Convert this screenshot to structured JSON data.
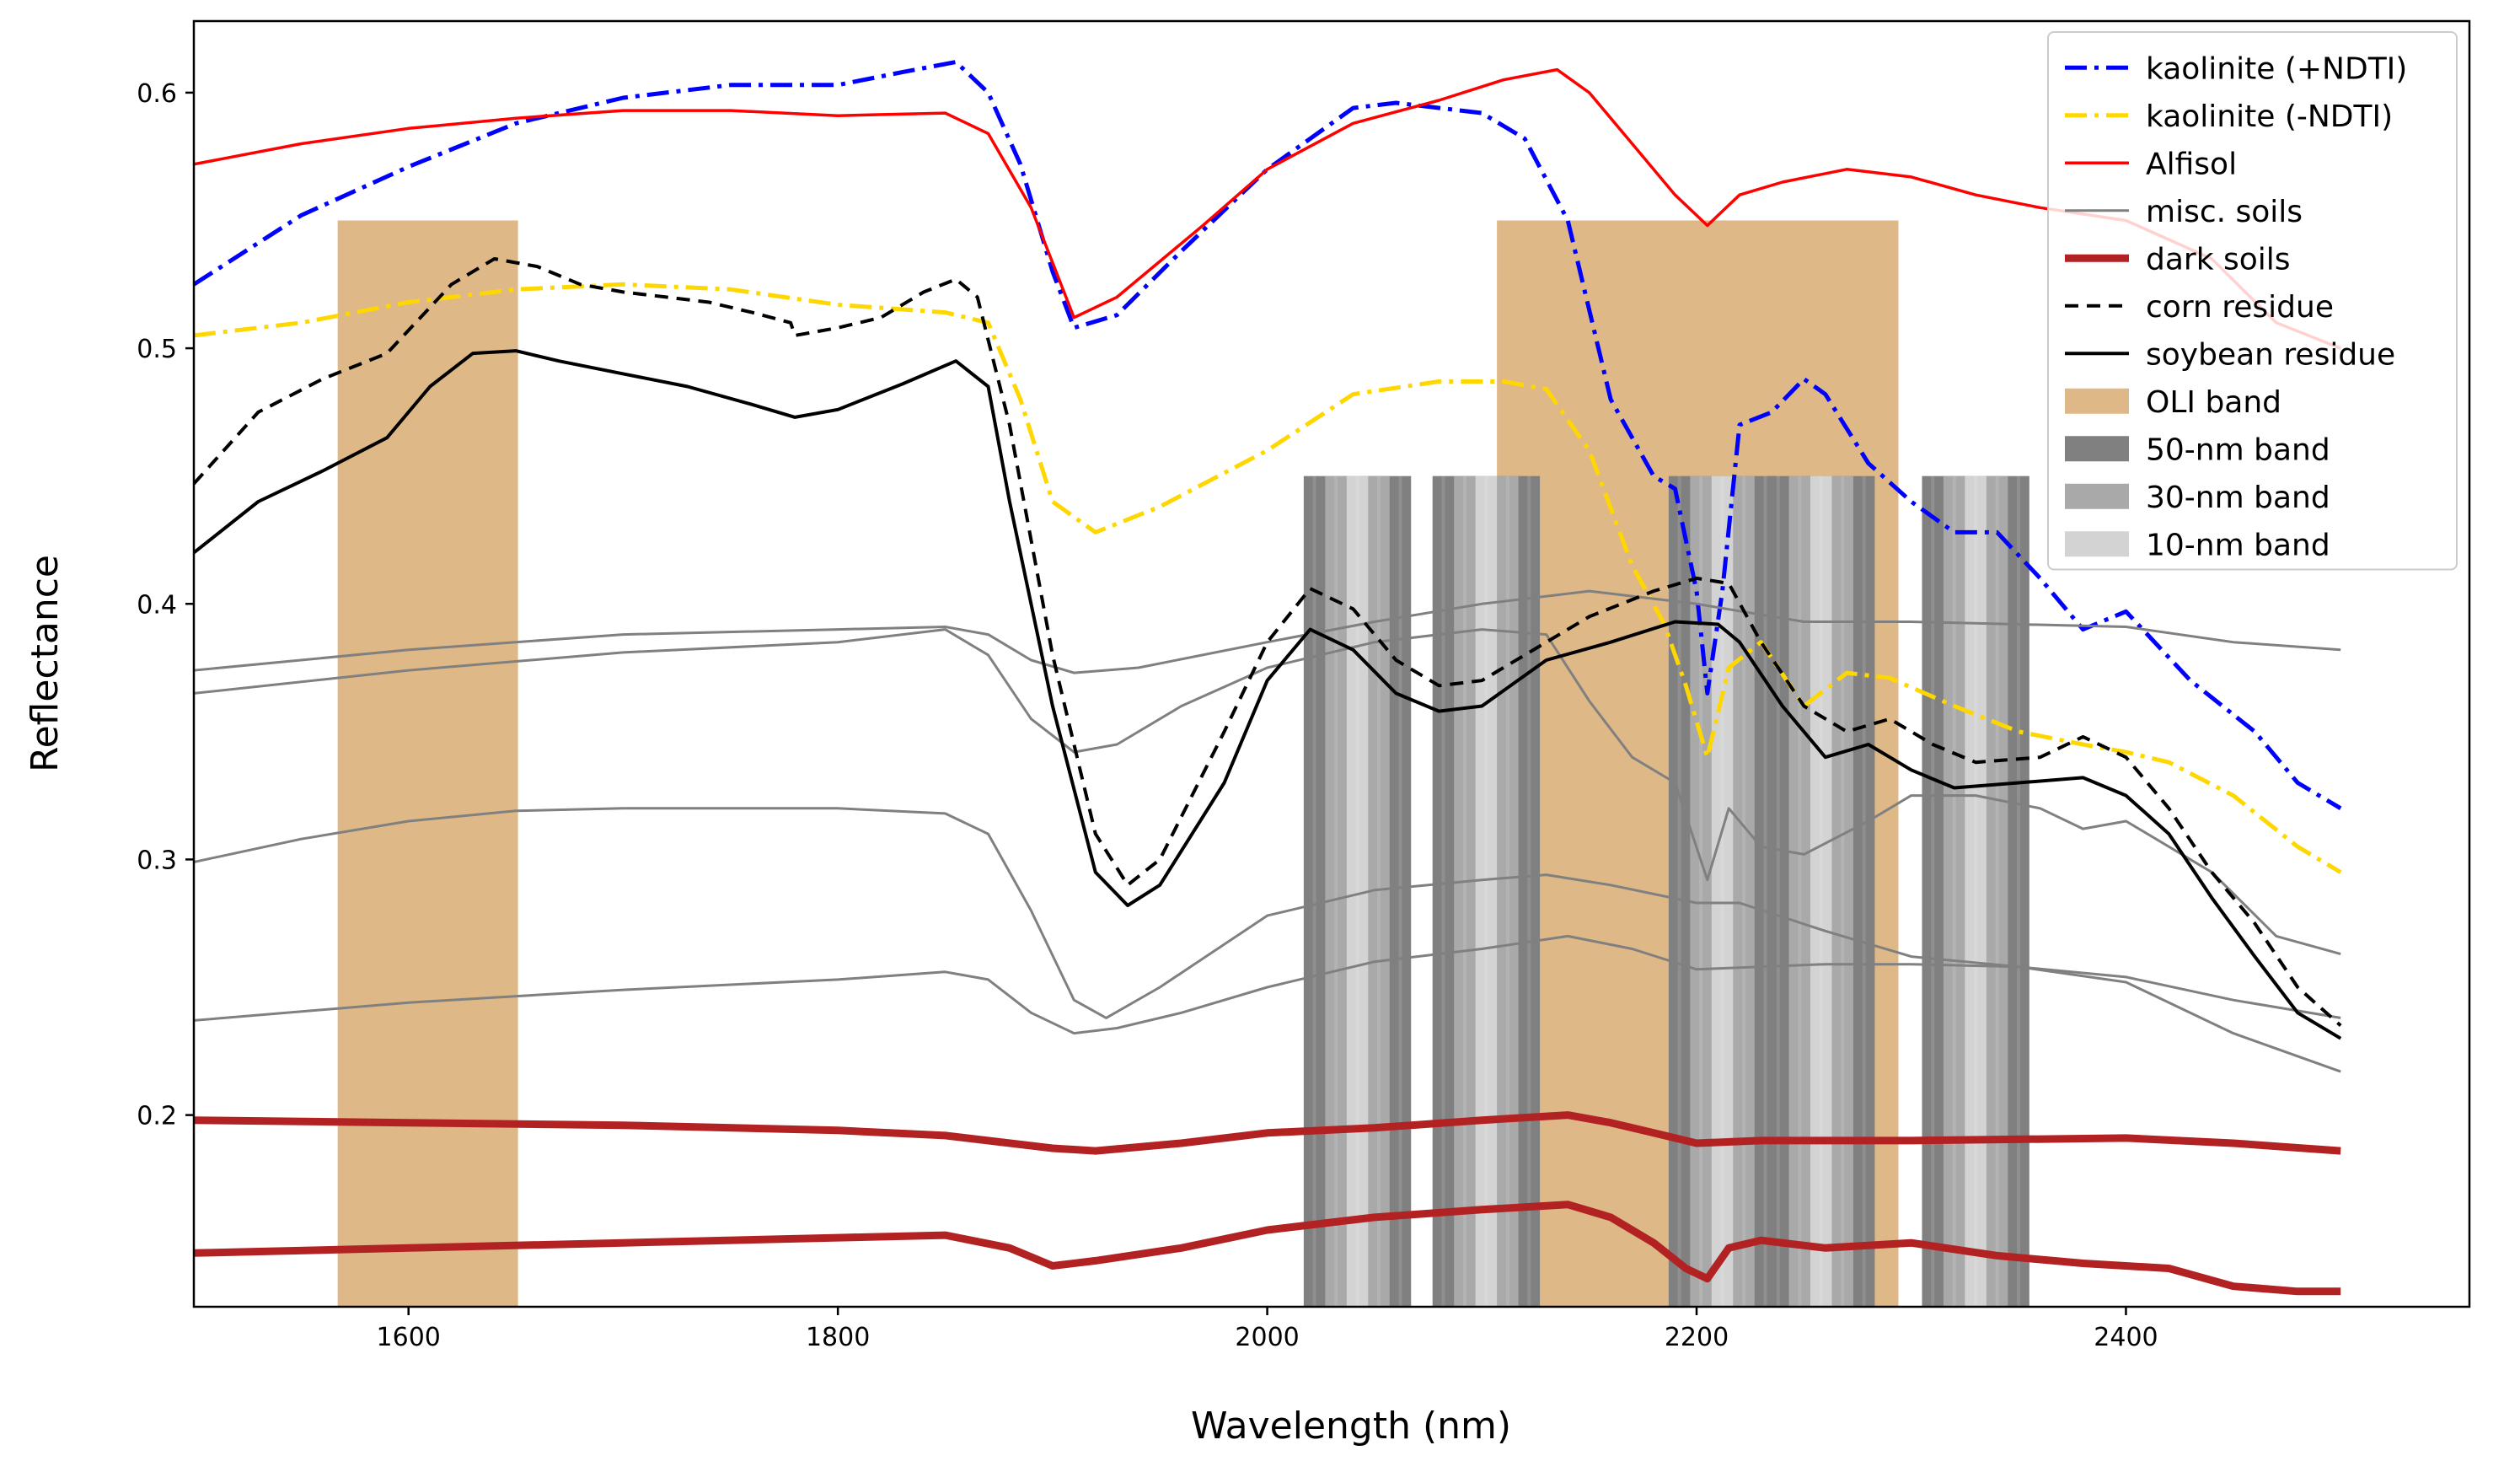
{
  "chart_data": {
    "type": "line",
    "title": "",
    "xlabel": "Wavelength (nm)",
    "ylabel": "Reflectance",
    "xlim": [
      1500,
      2560
    ],
    "ylim": [
      0.125,
      0.628
    ],
    "xticks": [
      1600,
      1800,
      2000,
      2200,
      2400
    ],
    "xtick_labels": [
      "1600",
      "1800",
      "2000",
      "2200",
      "2400"
    ],
    "yticks": [
      0.2,
      0.3,
      0.4,
      0.5,
      0.6
    ],
    "ytick_labels": [
      "0.2",
      "0.3",
      "0.4",
      "0.5",
      "0.6"
    ],
    "grid": false,
    "legend_position": "top-right",
    "bands": [
      {
        "kind": "oli",
        "x0": 1567,
        "x1": 1651,
        "top": 0.55,
        "color": "#deb887"
      },
      {
        "kind": "oli",
        "x0": 2107,
        "x1": 2294,
        "top": 0.55,
        "color": "#deb887"
      },
      {
        "kind": "nm",
        "x0": 2017,
        "x1": 2067,
        "top": 0.45
      },
      {
        "kind": "nm",
        "x0": 2077,
        "x1": 2127,
        "top": 0.45
      },
      {
        "kind": "nm",
        "x0": 2187,
        "x1": 2237,
        "top": 0.45
      },
      {
        "kind": "nm",
        "x0": 2233,
        "x1": 2283,
        "top": 0.45
      },
      {
        "kind": "nm",
        "x0": 2305,
        "x1": 2355,
        "top": 0.45
      }
    ],
    "band_shade_colors": {
      "50nm": "#808080",
      "30nm": "#a9a9a9",
      "10nm": "#d3d3d3"
    },
    "series": [
      {
        "name": "kaolinite (+NDTI)",
        "style": "dashdot",
        "color": "#0000ff",
        "width": 5,
        "x": [
          1500,
          1550,
          1600,
          1650,
          1700,
          1750,
          1800,
          1830,
          1855,
          1870,
          1885,
          1900,
          1910,
          1930,
          1960,
          2000,
          2040,
          2060,
          2100,
          2120,
          2140,
          2160,
          2180,
          2190,
          2200,
          2205,
          2212,
          2220,
          2235,
          2250,
          2260,
          2280,
          2300,
          2320,
          2340,
          2360,
          2380,
          2400,
          2430,
          2460,
          2480,
          2500
        ],
        "y": [
          0.525,
          0.552,
          0.571,
          0.588,
          0.598,
          0.603,
          0.603,
          0.608,
          0.612,
          0.6,
          0.572,
          0.53,
          0.508,
          0.513,
          0.538,
          0.57,
          0.594,
          0.596,
          0.592,
          0.582,
          0.55,
          0.48,
          0.45,
          0.445,
          0.405,
          0.365,
          0.405,
          0.47,
          0.475,
          0.488,
          0.482,
          0.455,
          0.44,
          0.428,
          0.428,
          0.41,
          0.39,
          0.397,
          0.37,
          0.35,
          0.33,
          0.32
        ]
      },
      {
        "name": "kaolinite (-NDTI)",
        "style": "dashdot",
        "color": "#ffd700",
        "width": 5,
        "x": [
          1500,
          1550,
          1600,
          1650,
          1700,
          1750,
          1800,
          1850,
          1870,
          1885,
          1900,
          1920,
          1950,
          2000,
          2040,
          2080,
          2110,
          2130,
          2150,
          2170,
          2185,
          2195,
          2205,
          2215,
          2230,
          2250,
          2270,
          2290,
          2320,
          2350,
          2380,
          2400,
          2420,
          2450,
          2480,
          2500
        ],
        "y": [
          0.505,
          0.51,
          0.518,
          0.523,
          0.525,
          0.523,
          0.517,
          0.514,
          0.51,
          0.48,
          0.44,
          0.428,
          0.438,
          0.46,
          0.482,
          0.487,
          0.487,
          0.484,
          0.46,
          0.415,
          0.392,
          0.368,
          0.34,
          0.375,
          0.385,
          0.36,
          0.373,
          0.371,
          0.36,
          0.35,
          0.345,
          0.342,
          0.338,
          0.325,
          0.305,
          0.295
        ]
      },
      {
        "name": "Alfisol",
        "style": "solid",
        "color": "#ff0000",
        "width": 3.5,
        "x": [
          1500,
          1550,
          1600,
          1650,
          1700,
          1750,
          1800,
          1850,
          1870,
          1890,
          1910,
          1930,
          1970,
          2000,
          2040,
          2080,
          2110,
          2135,
          2150,
          2170,
          2190,
          2205,
          2220,
          2240,
          2270,
          2300,
          2330,
          2360,
          2400,
          2440,
          2470,
          2500
        ],
        "y": [
          0.572,
          0.58,
          0.586,
          0.59,
          0.593,
          0.593,
          0.591,
          0.592,
          0.584,
          0.555,
          0.512,
          0.52,
          0.548,
          0.57,
          0.588,
          0.597,
          0.605,
          0.609,
          0.6,
          0.58,
          0.56,
          0.548,
          0.56,
          0.565,
          0.57,
          0.567,
          0.56,
          0.555,
          0.55,
          0.535,
          0.51,
          0.5
        ]
      },
      {
        "name": "misc. soils",
        "style": "solid",
        "color": "#808080",
        "width": 3,
        "x": [
          1500,
          1600,
          1700,
          1800,
          1850,
          1870,
          1890,
          1910,
          1940,
          2000,
          2050,
          2100,
          2150,
          2200,
          2250,
          2300,
          2350,
          2400,
          2450,
          2500
        ],
        "y": [
          0.374,
          0.382,
          0.388,
          0.39,
          0.391,
          0.388,
          0.378,
          0.373,
          0.375,
          0.385,
          0.393,
          0.4,
          0.405,
          0.4,
          0.393,
          0.393,
          0.392,
          0.391,
          0.385,
          0.382
        ]
      },
      {
        "name": "misc. soils",
        "style": "solid",
        "color": "#808080",
        "width": 3,
        "legend": false,
        "x": [
          1500,
          1600,
          1700,
          1800,
          1850,
          1870,
          1890,
          1910,
          1930,
          1960,
          2000,
          2050,
          2100,
          2130,
          2150,
          2170,
          2190,
          2205,
          2215,
          2230,
          2250,
          2280,
          2300,
          2330,
          2360,
          2380,
          2400,
          2440,
          2470,
          2500
        ],
        "y": [
          0.365,
          0.374,
          0.381,
          0.385,
          0.39,
          0.38,
          0.355,
          0.342,
          0.345,
          0.36,
          0.375,
          0.385,
          0.39,
          0.388,
          0.362,
          0.34,
          0.33,
          0.292,
          0.32,
          0.305,
          0.302,
          0.315,
          0.325,
          0.325,
          0.32,
          0.312,
          0.315,
          0.295,
          0.27,
          0.263
        ]
      },
      {
        "name": "misc. soils",
        "style": "solid",
        "color": "#808080",
        "width": 3,
        "legend": false,
        "x": [
          1500,
          1550,
          1600,
          1650,
          1700,
          1800,
          1850,
          1870,
          1890,
          1910,
          1925,
          1950,
          2000,
          2050,
          2100,
          2130,
          2160,
          2200,
          2220,
          2260,
          2300,
          2350,
          2400,
          2450,
          2500
        ],
        "y": [
          0.299,
          0.308,
          0.315,
          0.319,
          0.32,
          0.32,
          0.318,
          0.31,
          0.28,
          0.245,
          0.238,
          0.25,
          0.278,
          0.288,
          0.292,
          0.294,
          0.29,
          0.283,
          0.283,
          0.272,
          0.262,
          0.258,
          0.254,
          0.245,
          0.238
        ]
      },
      {
        "name": "misc. soils",
        "style": "solid",
        "color": "#808080",
        "width": 3,
        "legend": false,
        "x": [
          1500,
          1600,
          1700,
          1800,
          1850,
          1870,
          1890,
          1910,
          1930,
          1960,
          2000,
          2050,
          2100,
          2140,
          2170,
          2200,
          2230,
          2260,
          2300,
          2350,
          2400,
          2450,
          2500
        ],
        "y": [
          0.237,
          0.244,
          0.249,
          0.253,
          0.256,
          0.253,
          0.24,
          0.232,
          0.234,
          0.24,
          0.25,
          0.26,
          0.265,
          0.27,
          0.265,
          0.257,
          0.258,
          0.259,
          0.259,
          0.258,
          0.252,
          0.232,
          0.217
        ]
      },
      {
        "name": "dark soils",
        "style": "solid",
        "color": "#b22222",
        "width": 9,
        "x": [
          1500,
          1600,
          1700,
          1800,
          1850,
          1900,
          1920,
          1960,
          2000,
          2050,
          2100,
          2140,
          2160,
          2180,
          2200,
          2230,
          2300,
          2400,
          2450,
          2500
        ],
        "y": [
          0.198,
          0.197,
          0.196,
          0.194,
          0.192,
          0.187,
          0.186,
          0.189,
          0.193,
          0.195,
          0.198,
          0.2,
          0.197,
          0.193,
          0.189,
          0.19,
          0.19,
          0.191,
          0.189,
          0.186
        ]
      },
      {
        "name": "dark soils",
        "style": "solid",
        "color": "#b22222",
        "width": 9,
        "legend": false,
        "x": [
          1500,
          1600,
          1700,
          1800,
          1850,
          1880,
          1900,
          1920,
          1960,
          2000,
          2050,
          2100,
          2140,
          2160,
          2180,
          2195,
          2205,
          2215,
          2230,
          2260,
          2300,
          2340,
          2380,
          2420,
          2450,
          2480,
          2500
        ],
        "y": [
          0.146,
          0.148,
          0.15,
          0.152,
          0.153,
          0.148,
          0.141,
          0.143,
          0.148,
          0.155,
          0.16,
          0.163,
          0.165,
          0.16,
          0.15,
          0.14,
          0.136,
          0.148,
          0.151,
          0.148,
          0.15,
          0.145,
          0.142,
          0.14,
          0.133,
          0.131,
          0.131
        ]
      },
      {
        "name": "corn residue",
        "style": "dashed",
        "color": "#000000",
        "width": 4,
        "x": [
          1500,
          1530,
          1560,
          1590,
          1620,
          1640,
          1660,
          1680,
          1700,
          1720,
          1740,
          1760,
          1778,
          1780,
          1800,
          1820,
          1840,
          1855,
          1865,
          1880,
          1900,
          1920,
          1935,
          1950,
          1980,
          2000,
          2020,
          2040,
          2060,
          2080,
          2100,
          2120,
          2150,
          2180,
          2200,
          2215,
          2230,
          2250,
          2270,
          2290,
          2310,
          2330,
          2360,
          2380,
          2400,
          2420,
          2440,
          2460,
          2480,
          2500
        ],
        "y": [
          0.447,
          0.475,
          0.488,
          0.498,
          0.525,
          0.535,
          0.532,
          0.525,
          0.522,
          0.52,
          0.518,
          0.514,
          0.51,
          0.505,
          0.508,
          0.512,
          0.522,
          0.527,
          0.52,
          0.47,
          0.38,
          0.31,
          0.29,
          0.3,
          0.35,
          0.385,
          0.406,
          0.398,
          0.378,
          0.368,
          0.37,
          0.38,
          0.395,
          0.405,
          0.41,
          0.408,
          0.385,
          0.36,
          0.35,
          0.355,
          0.345,
          0.338,
          0.34,
          0.348,
          0.34,
          0.32,
          0.295,
          0.275,
          0.25,
          0.235
        ]
      },
      {
        "name": "soybean residue",
        "style": "solid",
        "color": "#000000",
        "width": 4,
        "x": [
          1500,
          1530,
          1560,
          1590,
          1610,
          1630,
          1650,
          1670,
          1700,
          1730,
          1760,
          1780,
          1800,
          1830,
          1855,
          1870,
          1880,
          1900,
          1920,
          1935,
          1950,
          1980,
          2000,
          2020,
          2040,
          2060,
          2080,
          2100,
          2130,
          2160,
          2190,
          2210,
          2220,
          2240,
          2260,
          2280,
          2300,
          2320,
          2350,
          2380,
          2400,
          2420,
          2440,
          2460,
          2480,
          2500
        ],
        "y": [
          0.42,
          0.44,
          0.452,
          0.465,
          0.485,
          0.498,
          0.499,
          0.495,
          0.49,
          0.485,
          0.478,
          0.473,
          0.476,
          0.486,
          0.495,
          0.485,
          0.44,
          0.36,
          0.295,
          0.282,
          0.29,
          0.33,
          0.37,
          0.39,
          0.382,
          0.365,
          0.358,
          0.36,
          0.378,
          0.385,
          0.393,
          0.392,
          0.385,
          0.36,
          0.34,
          0.345,
          0.335,
          0.328,
          0.33,
          0.332,
          0.325,
          0.31,
          0.285,
          0.262,
          0.24,
          0.23
        ]
      }
    ],
    "legend": [
      {
        "label": "kaolinite (+NDTI)",
        "kind": "line",
        "style": "dashdot",
        "color": "#0000ff",
        "width": 5
      },
      {
        "label": "kaolinite (-NDTI)",
        "kind": "line",
        "style": "dashdot",
        "color": "#ffd700",
        "width": 5
      },
      {
        "label": "Alfisol",
        "kind": "line",
        "style": "solid",
        "color": "#ff0000",
        "width": 3.5
      },
      {
        "label": "misc. soils",
        "kind": "line",
        "style": "solid",
        "color": "#808080",
        "width": 3
      },
      {
        "label": "dark soils",
        "kind": "line",
        "style": "solid",
        "color": "#b22222",
        "width": 9
      },
      {
        "label": "corn residue",
        "kind": "line",
        "style": "dashed",
        "color": "#000000",
        "width": 4
      },
      {
        "label": "soybean residue",
        "kind": "line",
        "style": "solid",
        "color": "#000000",
        "width": 4
      },
      {
        "label": "OLI band",
        "kind": "patch",
        "color": "#deb887"
      },
      {
        "label": "50-nm band",
        "kind": "patch",
        "color": "#808080"
      },
      {
        "label": "30-nm band",
        "kind": "patch",
        "color": "#a9a9a9"
      },
      {
        "label": "10-nm band",
        "kind": "patch",
        "color": "#d3d3d3"
      }
    ]
  }
}
